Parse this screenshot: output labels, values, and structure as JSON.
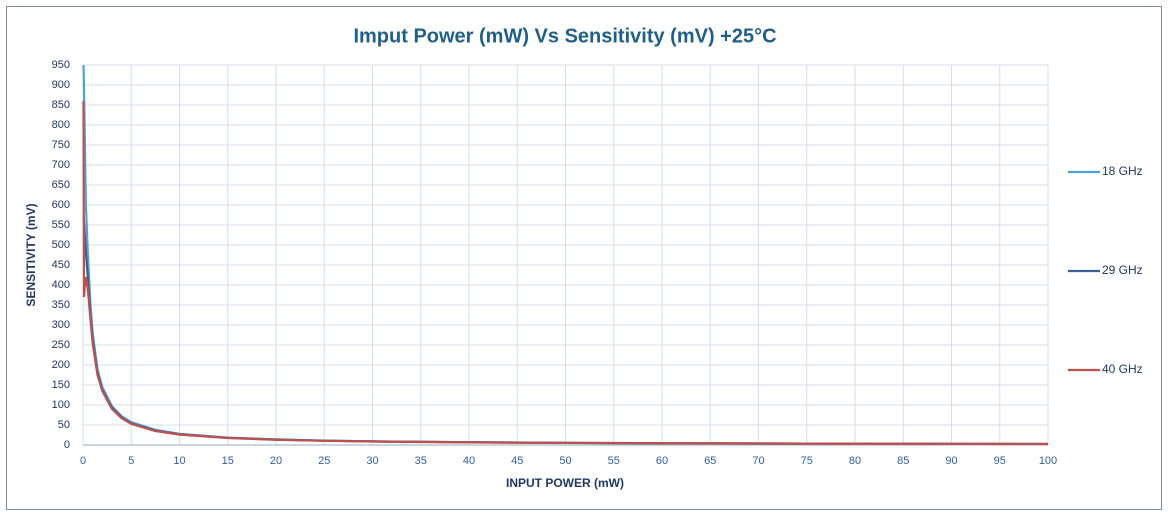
{
  "chart_data": {
    "type": "line",
    "title": "Imput Power (mW) Vs Sensitivity (mV) +25°C",
    "x_label": "INPUT POWER (mW)",
    "y_label": "SENSITIVITY  (mV)",
    "x": [
      0.05,
      0.1,
      0.2,
      0.3,
      0.5,
      0.75,
      1,
      1.5,
      2,
      3,
      4,
      5,
      7.5,
      10,
      15,
      20,
      25,
      30,
      40,
      50,
      60,
      70,
      80,
      90,
      100
    ],
    "series": [
      {
        "name": "18 GHz",
        "color": "#4ba3d6",
        "values": [
          950,
          900,
          750,
          600,
          480,
          360,
          280,
          190,
          145,
          97,
          72,
          57,
          38,
          28,
          18.5,
          14,
          11,
          9,
          7,
          5.5,
          4.5,
          3.8,
          3.3,
          3,
          2.7
        ]
      },
      {
        "name": "29 GHz",
        "color": "#3b5f98",
        "values": [
          570,
          560,
          520,
          480,
          420,
          330,
          265,
          180,
          138,
          93,
          69,
          54,
          36,
          27,
          18,
          13.5,
          10.8,
          9,
          6.8,
          5.4,
          4.5,
          3.8,
          3.3,
          2.9,
          2.6
        ]
      },
      {
        "name": "40 GHz",
        "color": "#c0504d",
        "values": [
          860,
          370,
          400,
          420,
          390,
          320,
          255,
          175,
          135,
          90,
          67,
          53,
          35,
          26,
          17.5,
          13,
          10.5,
          8.7,
          6.5,
          5.2,
          4.3,
          3.7,
          3.2,
          2.8,
          2.5
        ]
      }
    ],
    "xlim": [
      0,
      100
    ],
    "xticks": [
      0,
      5,
      10,
      15,
      20,
      25,
      30,
      35,
      40,
      45,
      50,
      55,
      60,
      65,
      70,
      75,
      80,
      85,
      90,
      95,
      100
    ],
    "ylim": [
      0,
      950
    ],
    "yticks": [
      0,
      50,
      100,
      150,
      200,
      250,
      300,
      350,
      400,
      450,
      500,
      550,
      600,
      650,
      700,
      750,
      800,
      850,
      900,
      950
    ],
    "grid": true,
    "legend": "right"
  }
}
